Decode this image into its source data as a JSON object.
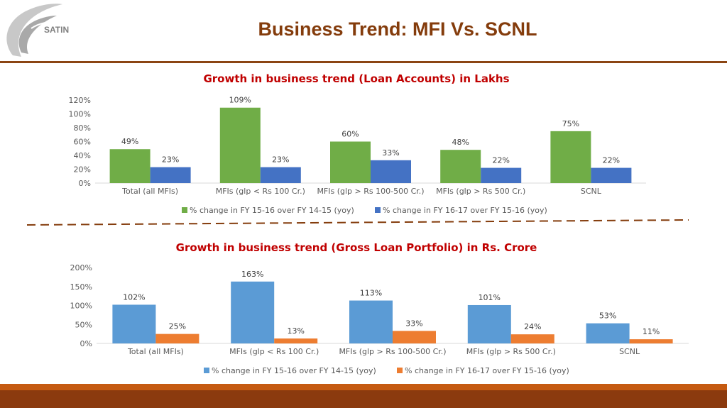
{
  "header": {
    "title": "Business Trend: MFI Vs. SCNL",
    "logo_text": "SATIN"
  },
  "colors": {
    "title": "#843c0c",
    "chart_title": "#c00000",
    "rule": "#8b4513",
    "green": "#70ad47",
    "blue_dark": "#4472c4",
    "blue_light": "#5b9bd5",
    "orange": "#ed7d31"
  },
  "chart_data": [
    {
      "type": "bar",
      "title": "Growth in business trend (Loan Accounts) in Lakhs",
      "categories": [
        "Total (all MFIs)",
        "MFIs (glp < Rs 100 Cr.)",
        "MFIs (glp > Rs 100-500 Cr.)",
        "MFIs (glp > Rs 500 Cr.)",
        "SCNL"
      ],
      "series": [
        {
          "name": "% change in FY 15-16 over FY 14-15 (yoy)",
          "color": "#70ad47",
          "values": [
            49,
            109,
            60,
            48,
            75
          ],
          "labels": [
            "49%",
            "109%",
            "60%",
            "48%",
            "75%"
          ]
        },
        {
          "name": "% change in FY 16-17 over FY 15-16 (yoy)",
          "color": "#4472c4",
          "values": [
            23,
            23,
            33,
            22,
            22
          ],
          "labels": [
            "23%",
            "23%",
            "33%",
            "22%",
            "22%"
          ]
        }
      ],
      "ylim": [
        0,
        120
      ],
      "yticks": [
        "0%",
        "20%",
        "40%",
        "60%",
        "80%",
        "100%",
        "120%"
      ],
      "legend": "bottom",
      "grid": false
    },
    {
      "type": "bar",
      "title": "Growth in business trend (Gross Loan Portfolio) in Rs. Crore",
      "categories": [
        "Total (all MFIs)",
        "MFIs (glp < Rs 100 Cr.)",
        "MFIs (glp > Rs 100-500 Cr.)",
        "MFIs (glp > Rs 500 Cr.)",
        "SCNL"
      ],
      "series": [
        {
          "name": "% change in FY 15-16 over FY 14-15 (yoy)",
          "color": "#5b9bd5",
          "values": [
            102,
            163,
            113,
            101,
            53
          ],
          "labels": [
            "102%",
            "163%",
            "113%",
            "101%",
            "53%"
          ]
        },
        {
          "name": "% change in FY 16-17 over FY 15-16 (yoy)",
          "color": "#ed7d31",
          "values": [
            25,
            13,
            33,
            24,
            11
          ],
          "labels": [
            "25%",
            "13%",
            "33%",
            "24%",
            "11%"
          ]
        }
      ],
      "ylim": [
        0,
        200
      ],
      "yticks": [
        "0%",
        "50%",
        "100%",
        "150%",
        "200%"
      ],
      "legend": "bottom",
      "grid": false
    }
  ]
}
